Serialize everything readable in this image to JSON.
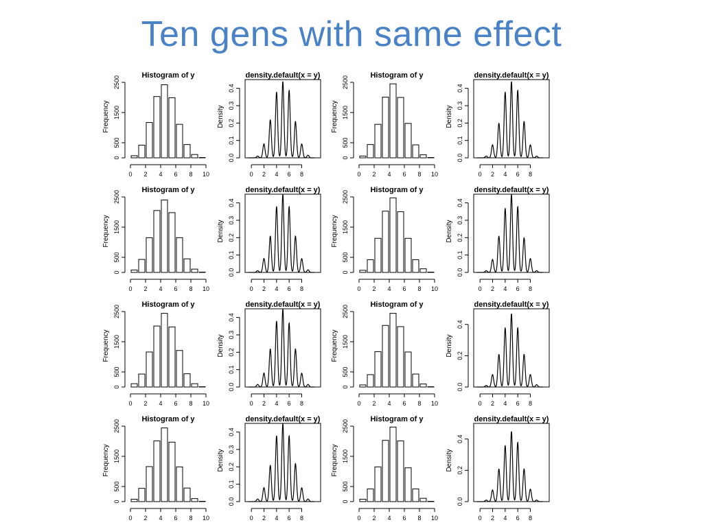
{
  "slide": {
    "title": "Ten gens with same effect"
  },
  "chart_data": [
    {
      "type": "histogram",
      "title": "Histogram of y",
      "xlabel": "",
      "ylabel": "Frequency",
      "bin_edges": [
        0,
        1,
        2,
        3,
        4,
        5,
        6,
        7,
        8,
        9,
        10
      ],
      "values": [
        70,
        420,
        1170,
        2030,
        2420,
        1990,
        1110,
        440,
        110,
        10
      ],
      "xlim": [
        0,
        10
      ],
      "ylim": [
        0,
        2500
      ],
      "xticks": [
        0,
        2,
        4,
        6,
        8,
        10
      ],
      "yticks": [
        0,
        500,
        1500,
        2500
      ]
    },
    {
      "type": "line",
      "title": "density.default(x = y)",
      "xlabel": "",
      "ylabel": "Density",
      "peaks": [
        {
          "x": 1,
          "y": 0.01
        },
        {
          "x": 2,
          "y": 0.08
        },
        {
          "x": 3,
          "y": 0.22
        },
        {
          "x": 4,
          "y": 0.38
        },
        {
          "x": 5,
          "y": 0.44
        },
        {
          "x": 6,
          "y": 0.39
        },
        {
          "x": 7,
          "y": 0.21
        },
        {
          "x": 8,
          "y": 0.08
        },
        {
          "x": 9,
          "y": 0.015
        }
      ],
      "xlim": [
        -1,
        11
      ],
      "ylim": [
        0,
        0.45
      ],
      "xticks": [
        0,
        2,
        4,
        6,
        8
      ],
      "yticks": [
        0.0,
        0.1,
        0.2,
        0.3,
        0.4
      ]
    },
    {
      "type": "histogram",
      "title": "Histogram of y",
      "xlabel": "",
      "ylabel": "Frequency",
      "bin_edges": [
        0,
        1,
        2,
        3,
        4,
        5,
        6,
        7,
        8,
        9,
        10
      ],
      "values": [
        60,
        440,
        1110,
        2010,
        2450,
        2000,
        1140,
        430,
        100,
        10
      ],
      "xlim": [
        0,
        10
      ],
      "ylim": [
        0,
        2500
      ],
      "xticks": [
        0,
        2,
        4,
        6,
        8,
        10
      ],
      "yticks": [
        0,
        500,
        1500,
        2500
      ]
    },
    {
      "type": "line",
      "title": "density.default(x = y)",
      "xlabel": "",
      "ylabel": "Density",
      "peaks": [
        {
          "x": 1,
          "y": 0.01
        },
        {
          "x": 2,
          "y": 0.075
        },
        {
          "x": 3,
          "y": 0.2
        },
        {
          "x": 4,
          "y": 0.38
        },
        {
          "x": 5,
          "y": 0.44
        },
        {
          "x": 6,
          "y": 0.39
        },
        {
          "x": 7,
          "y": 0.21
        },
        {
          "x": 8,
          "y": 0.075
        },
        {
          "x": 9,
          "y": 0.01
        }
      ],
      "xlim": [
        -1,
        11
      ],
      "ylim": [
        0,
        0.45
      ],
      "xticks": [
        0,
        2,
        4,
        6,
        8
      ],
      "yticks": [
        0.0,
        0.1,
        0.2,
        0.3,
        0.4
      ]
    },
    {
      "type": "histogram",
      "title": "Histogram of y",
      "xlabel": "",
      "ylabel": "Frequency",
      "bin_edges": [
        0,
        1,
        2,
        3,
        4,
        5,
        6,
        7,
        8,
        9,
        10
      ],
      "values": [
        80,
        430,
        1150,
        2050,
        2400,
        1980,
        1150,
        450,
        110,
        10
      ],
      "xlim": [
        0,
        10
      ],
      "ylim": [
        0,
        2500
      ],
      "xticks": [
        0,
        2,
        4,
        6,
        8,
        10
      ],
      "yticks": [
        0,
        500,
        1500,
        2500
      ]
    },
    {
      "type": "line",
      "title": "density.default(x = y)",
      "xlabel": "",
      "ylabel": "Density",
      "peaks": [
        {
          "x": 1,
          "y": 0.01
        },
        {
          "x": 2,
          "y": 0.08
        },
        {
          "x": 3,
          "y": 0.21
        },
        {
          "x": 4,
          "y": 0.38
        },
        {
          "x": 5,
          "y": 0.45
        },
        {
          "x": 6,
          "y": 0.38
        },
        {
          "x": 7,
          "y": 0.21
        },
        {
          "x": 8,
          "y": 0.08
        },
        {
          "x": 9,
          "y": 0.015
        }
      ],
      "xlim": [
        -1,
        11
      ],
      "ylim": [
        0,
        0.45
      ],
      "xticks": [
        0,
        2,
        4,
        6,
        8
      ],
      "yticks": [
        0.0,
        0.1,
        0.2,
        0.3,
        0.4
      ]
    },
    {
      "type": "histogram",
      "title": "Histogram of y",
      "xlabel": "",
      "ylabel": "Frequency",
      "bin_edges": [
        0,
        1,
        2,
        3,
        4,
        5,
        6,
        7,
        8,
        9,
        10
      ],
      "values": [
        70,
        420,
        1130,
        2030,
        2470,
        2010,
        1130,
        420,
        120,
        10
      ],
      "xlim": [
        0,
        10
      ],
      "ylim": [
        0,
        2500
      ],
      "xticks": [
        0,
        2,
        4,
        6,
        8,
        10
      ],
      "yticks": [
        0,
        500,
        1500,
        2500
      ]
    },
    {
      "type": "line",
      "title": "density.default(x = y)",
      "xlabel": "",
      "ylabel": "Density",
      "peaks": [
        {
          "x": 1,
          "y": 0.01
        },
        {
          "x": 2,
          "y": 0.075
        },
        {
          "x": 3,
          "y": 0.21
        },
        {
          "x": 4,
          "y": 0.37
        },
        {
          "x": 5,
          "y": 0.45
        },
        {
          "x": 6,
          "y": 0.38
        },
        {
          "x": 7,
          "y": 0.2
        },
        {
          "x": 8,
          "y": 0.08
        },
        {
          "x": 9,
          "y": 0.01
        }
      ],
      "xlim": [
        -1,
        11
      ],
      "ylim": [
        0,
        0.45
      ],
      "xticks": [
        0,
        2,
        4,
        6,
        8
      ],
      "yticks": [
        0.0,
        0.1,
        0.2,
        0.3,
        0.4
      ]
    },
    {
      "type": "histogram",
      "title": "Histogram of y",
      "xlabel": "",
      "ylabel": "Frequency",
      "bin_edges": [
        0,
        1,
        2,
        3,
        4,
        5,
        6,
        7,
        8,
        9,
        10
      ],
      "values": [
        110,
        430,
        1160,
        2020,
        2440,
        1990,
        1210,
        440,
        110,
        10
      ],
      "xlim": [
        0,
        10
      ],
      "ylim": [
        0,
        2500
      ],
      "xticks": [
        0,
        2,
        4,
        6,
        8,
        10
      ],
      "yticks": [
        0,
        500,
        1500,
        2500
      ]
    },
    {
      "type": "line",
      "title": "density.default(x = y)",
      "xlabel": "",
      "ylabel": "Density",
      "peaks": [
        {
          "x": 1,
          "y": 0.015
        },
        {
          "x": 2,
          "y": 0.08
        },
        {
          "x": 3,
          "y": 0.22
        },
        {
          "x": 4,
          "y": 0.38
        },
        {
          "x": 5,
          "y": 0.45
        },
        {
          "x": 6,
          "y": 0.37
        },
        {
          "x": 7,
          "y": 0.22
        },
        {
          "x": 8,
          "y": 0.08
        },
        {
          "x": 9,
          "y": 0.015
        }
      ],
      "xlim": [
        -1,
        11
      ],
      "ylim": [
        0,
        0.45
      ],
      "xticks": [
        0,
        2,
        4,
        6,
        8
      ],
      "yticks": [
        0.0,
        0.1,
        0.2,
        0.3,
        0.4
      ]
    },
    {
      "type": "histogram",
      "title": "Histogram of y",
      "xlabel": "",
      "ylabel": "Frequency",
      "bin_edges": [
        0,
        1,
        2,
        3,
        4,
        5,
        6,
        7,
        8,
        9,
        10
      ],
      "values": [
        70,
        410,
        1170,
        2040,
        2440,
        2000,
        1160,
        430,
        100,
        10
      ],
      "xlim": [
        0,
        10
      ],
      "ylim": [
        0,
        2500
      ],
      "xticks": [
        0,
        2,
        4,
        6,
        8,
        10
      ],
      "yticks": [
        0,
        500,
        1500,
        2500
      ]
    },
    {
      "type": "line",
      "title": "density.default(x = y)",
      "xlabel": "",
      "ylabel": "Density",
      "peaks": [
        {
          "x": 1,
          "y": 0.01
        },
        {
          "x": 2,
          "y": 0.08
        },
        {
          "x": 3,
          "y": 0.21
        },
        {
          "x": 4,
          "y": 0.38
        },
        {
          "x": 5,
          "y": 0.47
        },
        {
          "x": 6,
          "y": 0.38
        },
        {
          "x": 7,
          "y": 0.21
        },
        {
          "x": 8,
          "y": 0.08
        },
        {
          "x": 9,
          "y": 0.015
        }
      ],
      "xlim": [
        -1,
        11
      ],
      "ylim": [
        0,
        0.5
      ],
      "xticks": [
        0,
        2,
        4,
        6,
        8
      ],
      "yticks": [
        0.0,
        0.2,
        0.4
      ]
    },
    {
      "type": "histogram",
      "title": "Histogram of y",
      "xlabel": "",
      "ylabel": "Frequency",
      "bin_edges": [
        0,
        1,
        2,
        3,
        4,
        5,
        6,
        7,
        8,
        9,
        10
      ],
      "values": [
        80,
        440,
        1160,
        2010,
        2440,
        1970,
        1150,
        450,
        100,
        10
      ],
      "xlim": [
        0,
        10
      ],
      "ylim": [
        0,
        2500
      ],
      "xticks": [
        0,
        2,
        4,
        6,
        8,
        10
      ],
      "yticks": [
        0,
        500,
        1500,
        2500
      ]
    },
    {
      "type": "line",
      "title": "density.default(x = y)",
      "xlabel": "",
      "ylabel": "Density",
      "peaks": [
        {
          "x": 1,
          "y": 0.015
        },
        {
          "x": 2,
          "y": 0.08
        },
        {
          "x": 3,
          "y": 0.21
        },
        {
          "x": 4,
          "y": 0.38
        },
        {
          "x": 5,
          "y": 0.45
        },
        {
          "x": 6,
          "y": 0.38
        },
        {
          "x": 7,
          "y": 0.22
        },
        {
          "x": 8,
          "y": 0.08
        },
        {
          "x": 9,
          "y": 0.015
        }
      ],
      "xlim": [
        -1,
        11
      ],
      "ylim": [
        0,
        0.45
      ],
      "xticks": [
        0,
        2,
        4,
        6,
        8
      ],
      "yticks": [
        0.0,
        0.1,
        0.2,
        0.3,
        0.4
      ]
    },
    {
      "type": "histogram",
      "title": "Histogram of y",
      "xlabel": "",
      "ylabel": "Frequency",
      "bin_edges": [
        0,
        1,
        2,
        3,
        4,
        5,
        6,
        7,
        8,
        9,
        10
      ],
      "values": [
        80,
        420,
        1150,
        2030,
        2470,
        2010,
        1120,
        420,
        110,
        10
      ],
      "xlim": [
        0,
        10
      ],
      "ylim": [
        0,
        2500
      ],
      "xticks": [
        0,
        2,
        4,
        6,
        8,
        10
      ],
      "yticks": [
        0,
        500,
        1500,
        2500
      ]
    },
    {
      "type": "line",
      "title": "density.default(x = y)",
      "xlabel": "",
      "ylabel": "Density",
      "peaks": [
        {
          "x": 1,
          "y": 0.01
        },
        {
          "x": 2,
          "y": 0.075
        },
        {
          "x": 3,
          "y": 0.21
        },
        {
          "x": 4,
          "y": 0.36
        },
        {
          "x": 5,
          "y": 0.45
        },
        {
          "x": 6,
          "y": 0.38
        },
        {
          "x": 7,
          "y": 0.21
        },
        {
          "x": 8,
          "y": 0.08
        },
        {
          "x": 9,
          "y": 0.01
        }
      ],
      "xlim": [
        -1,
        11
      ],
      "ylim": [
        0,
        0.5
      ],
      "xticks": [
        0,
        2,
        4,
        6,
        8
      ],
      "yticks": [
        0.0,
        0.2,
        0.4
      ]
    }
  ]
}
